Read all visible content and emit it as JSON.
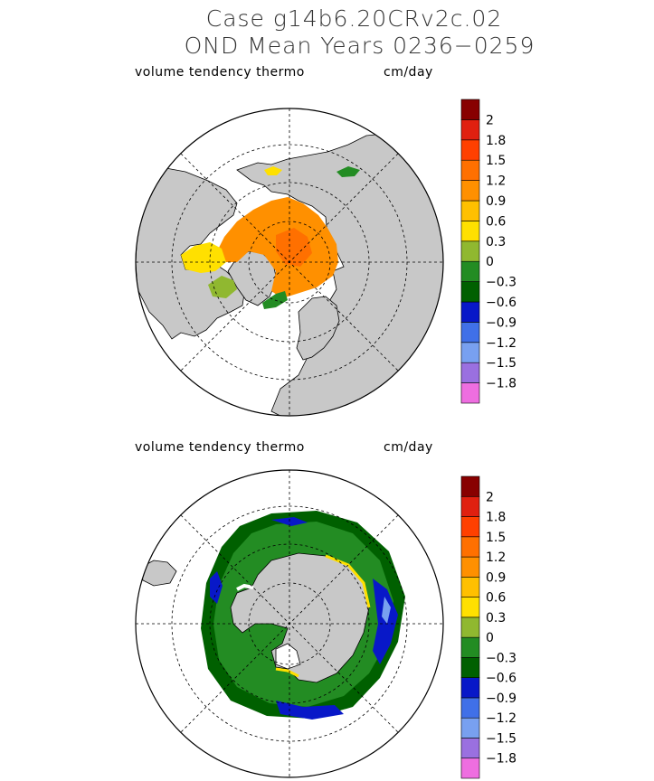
{
  "title": {
    "line1": "Case g14b6.20CRv2c.02",
    "line2": "OND Mean    Years 0236−0259"
  },
  "panels": [
    {
      "hemisphere": "north",
      "variable_label": "volume tendency thermo",
      "unit_label": "cm/day"
    },
    {
      "hemisphere": "south",
      "variable_label": "volume tendency thermo",
      "unit_label": "cm/day"
    }
  ],
  "colorbar": {
    "colors": [
      "#ee6ee0",
      "#9a70e0",
      "#78a0f0",
      "#4070e8",
      "#0818c8",
      "#006000",
      "#238c23",
      "#90b830",
      "#ffe000",
      "#ffc000",
      "#ff9000",
      "#ff7000",
      "#ff4000",
      "#e02010",
      "#880000"
    ],
    "labels": [
      "−1.8",
      "−1.5",
      "−1.2",
      "−0.9",
      "−0.6",
      "−0.3",
      "0",
      "0.3",
      "0.6",
      "0.9",
      "1.2",
      "1.5",
      "1.8",
      "2"
    ]
  },
  "map_colors": {
    "land": "#c8c8c8",
    "ocean": "#ffffff",
    "grid": "#000000"
  }
}
